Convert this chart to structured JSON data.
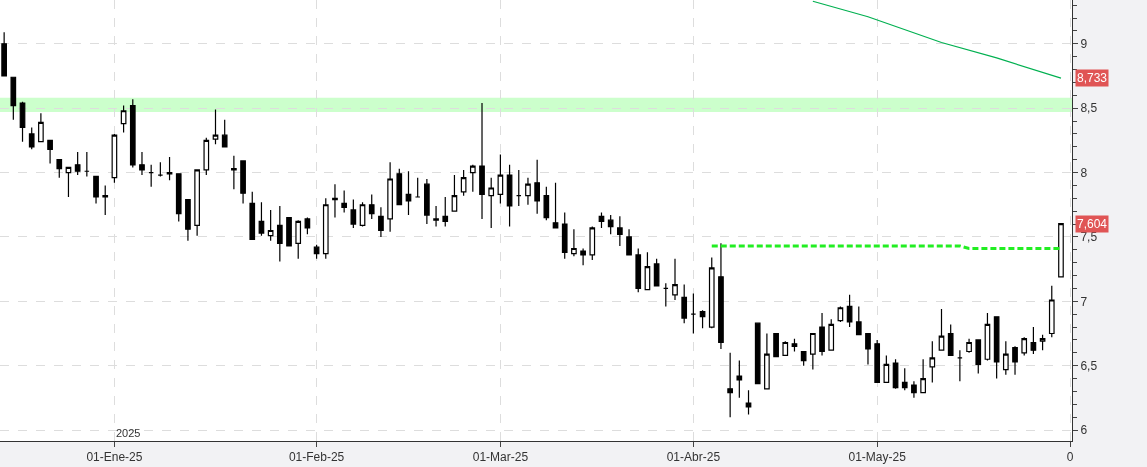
{
  "chart_data": {
    "type": "candlestick",
    "color": "#000000",
    "categories": [
      null,
      null,
      null,
      null,
      null,
      null,
      null,
      null,
      null,
      null,
      null,
      null,
      "01-Ene-25",
      null,
      null,
      null,
      null,
      null,
      null,
      null,
      null,
      null,
      null,
      null,
      null,
      null,
      null,
      null,
      null,
      null,
      null,
      null,
      null,
      null,
      "01-Feb-25",
      null,
      null,
      null,
      null,
      null,
      null,
      null,
      null,
      null,
      null,
      null,
      null,
      null,
      null,
      null,
      null,
      null,
      null,
      null,
      "01-Mar-25",
      null,
      null,
      null,
      null,
      null,
      null,
      null,
      null,
      null,
      null,
      null,
      null,
      null,
      null,
      null,
      null,
      null,
      null,
      null,
      null,
      "01-Abr-25",
      null,
      null,
      null,
      null,
      null,
      null,
      null,
      null,
      null,
      null,
      null,
      null,
      null,
      null,
      null,
      null,
      null,
      null,
      null,
      "01-May-25",
      null,
      null,
      null,
      null,
      null,
      null,
      null,
      null,
      null,
      null,
      null,
      null,
      null,
      null,
      null,
      null,
      null,
      null,
      null,
      null,
      "0"
    ],
    "ohlc": [
      [
        9.0,
        9.09,
        8.75,
        8.75
      ],
      [
        8.74,
        8.74,
        8.41,
        8.52
      ],
      [
        8.54,
        8.55,
        8.24,
        8.35
      ],
      [
        8.3,
        8.35,
        8.18,
        8.2
      ],
      [
        8.24,
        8.46,
        8.24,
        8.39
      ],
      [
        8.25,
        8.25,
        8.07,
        8.18
      ],
      [
        8.1,
        8.1,
        7.96,
        8.03
      ],
      [
        8.0,
        8.04,
        7.81,
        8.04
      ],
      [
        8.06,
        8.16,
        7.98,
        8.01
      ],
      [
        8.01,
        8.16,
        7.97,
        8.01
      ],
      [
        7.97,
        7.97,
        7.76,
        7.81
      ],
      [
        7.81,
        7.9,
        7.67,
        7.82
      ],
      [
        7.96,
        8.3,
        7.92,
        8.29
      ],
      [
        8.38,
        8.52,
        8.31,
        8.48
      ],
      [
        8.52,
        8.57,
        8.04,
        8.06
      ],
      [
        8.06,
        8.16,
        7.98,
        8.02
      ],
      [
        8.0,
        8.06,
        7.89,
        8.0
      ],
      [
        7.98,
        8.08,
        7.97,
        7.98
      ],
      [
        7.99,
        8.12,
        7.94,
        8.0
      ],
      [
        7.99,
        7.99,
        7.62,
        7.68
      ],
      [
        7.79,
        7.79,
        7.47,
        7.56
      ],
      [
        7.59,
        8.02,
        7.51,
        8.02
      ],
      [
        8.02,
        8.27,
        7.98,
        8.25
      ],
      [
        8.26,
        8.49,
        8.22,
        8.29
      ],
      [
        8.29,
        8.41,
        8.2,
        8.2
      ],
      [
        8.03,
        8.13,
        7.87,
        8.02
      ],
      [
        8.09,
        8.09,
        7.76,
        7.84
      ],
      [
        7.76,
        7.85,
        7.48,
        7.48
      ],
      [
        7.62,
        7.77,
        7.51,
        7.53
      ],
      [
        7.51,
        7.71,
        7.47,
        7.55
      ],
      [
        7.59,
        7.74,
        7.31,
        7.45
      ],
      [
        7.65,
        7.65,
        7.43,
        7.43
      ],
      [
        7.45,
        7.63,
        7.33,
        7.62
      ],
      [
        7.64,
        7.65,
        7.52,
        7.57
      ],
      [
        7.42,
        7.44,
        7.33,
        7.37
      ],
      [
        7.37,
        7.8,
        7.33,
        7.75
      ],
      [
        7.8,
        7.91,
        7.65,
        7.79
      ],
      [
        7.76,
        7.86,
        7.69,
        7.73
      ],
      [
        7.71,
        7.79,
        7.57,
        7.6
      ],
      [
        7.59,
        7.77,
        7.58,
        7.75
      ],
      [
        7.75,
        7.83,
        7.64,
        7.68
      ],
      [
        7.66,
        7.73,
        7.5,
        7.55
      ],
      [
        7.64,
        8.08,
        7.54,
        7.95
      ],
      [
        7.99,
        8.03,
        7.75,
        7.75
      ],
      [
        7.83,
        8.01,
        7.67,
        7.78
      ],
      [
        7.81,
        7.96,
        7.81,
        7.81
      ],
      [
        7.91,
        7.95,
        7.6,
        7.67
      ],
      [
        7.63,
        7.74,
        7.58,
        7.64
      ],
      [
        7.66,
        7.81,
        7.58,
        7.62
      ],
      [
        7.7,
        7.98,
        7.7,
        7.82
      ],
      [
        7.85,
        8.02,
        7.82,
        7.96
      ],
      [
        8.0,
        8.06,
        7.85,
        8.05
      ],
      [
        8.05,
        8.54,
        7.64,
        7.83
      ],
      [
        7.82,
        7.96,
        7.57,
        7.88
      ],
      [
        7.83,
        8.14,
        7.76,
        7.98
      ],
      [
        7.98,
        8.06,
        7.58,
        7.74
      ],
      [
        7.82,
        8.02,
        7.74,
        7.82
      ],
      [
        7.82,
        7.96,
        7.75,
        7.91
      ],
      [
        7.92,
        8.1,
        7.68,
        7.78
      ],
      [
        7.82,
        7.89,
        7.63,
        7.65
      ],
      [
        7.61,
        7.92,
        7.57,
        7.57
      ],
      [
        7.6,
        7.69,
        7.33,
        7.38
      ],
      [
        7.37,
        7.56,
        7.35,
        7.41
      ],
      [
        7.39,
        7.41,
        7.28,
        7.36
      ],
      [
        7.36,
        7.58,
        7.32,
        7.57
      ],
      [
        7.66,
        7.69,
        7.57,
        7.62
      ],
      [
        7.63,
        7.67,
        7.52,
        7.58
      ],
      [
        7.57,
        7.66,
        7.43,
        7.52
      ],
      [
        7.5,
        7.56,
        7.36,
        7.36
      ],
      [
        7.36,
        7.41,
        7.07,
        7.1
      ],
      [
        7.09,
        7.38,
        7.09,
        7.27
      ],
      [
        7.29,
        7.33,
        7.12,
        7.12
      ],
      [
        7.1,
        7.14,
        6.96,
        7.1
      ],
      [
        7.05,
        7.33,
        7.01,
        7.13
      ],
      [
        7.03,
        7.13,
        6.83,
        6.87
      ],
      [
        6.9,
        7.06,
        6.75,
        6.9
      ],
      [
        6.92,
        6.93,
        6.79,
        6.88
      ],
      [
        6.8,
        7.34,
        6.79,
        7.26
      ],
      [
        7.19,
        7.45,
        6.63,
        6.68
      ],
      [
        6.32,
        6.6,
        6.1,
        6.29
      ],
      [
        6.42,
        6.54,
        6.25,
        6.39
      ],
      [
        6.21,
        6.31,
        6.12,
        6.18
      ],
      [
        6.83,
        6.83,
        6.36,
        6.36
      ],
      [
        6.32,
        6.75,
        6.32,
        6.59
      ],
      [
        6.75,
        6.75,
        6.57,
        6.57
      ],
      [
        6.58,
        6.69,
        6.58,
        6.68
      ],
      [
        6.67,
        6.71,
        6.61,
        6.65
      ],
      [
        6.61,
        6.61,
        6.5,
        6.54
      ],
      [
        6.59,
        6.75,
        6.47,
        6.75
      ],
      [
        6.8,
        6.91,
        6.58,
        6.61
      ],
      [
        6.62,
        6.86,
        6.62,
        6.82
      ],
      [
        6.85,
        6.96,
        6.84,
        6.95
      ],
      [
        6.96,
        7.05,
        6.8,
        6.84
      ],
      [
        6.84,
        6.96,
        6.74,
        6.74
      ],
      [
        6.75,
        6.75,
        6.51,
        6.63
      ],
      [
        6.67,
        6.7,
        6.37,
        6.37
      ],
      [
        6.37,
        6.58,
        6.37,
        6.51
      ],
      [
        6.52,
        6.55,
        6.32,
        6.33
      ],
      [
        6.37,
        6.48,
        6.31,
        6.33
      ],
      [
        6.35,
        6.38,
        6.25,
        6.29
      ],
      [
        6.29,
        6.55,
        6.29,
        6.4
      ],
      [
        6.49,
        6.69,
        6.37,
        6.56
      ],
      [
        6.62,
        6.94,
        6.62,
        6.73
      ],
      [
        6.75,
        6.82,
        6.58,
        6.58
      ],
      [
        6.56,
        6.62,
        6.38,
        6.56
      ],
      [
        6.61,
        6.71,
        6.6,
        6.68
      ],
      [
        6.7,
        6.7,
        6.44,
        6.51
      ],
      [
        6.55,
        6.91,
        6.54,
        6.82
      ],
      [
        6.88,
        6.88,
        6.4,
        6.53
      ],
      [
        6.47,
        6.69,
        6.43,
        6.59
      ],
      [
        6.64,
        6.65,
        6.43,
        6.53
      ],
      [
        6.6,
        6.72,
        6.58,
        6.71
      ],
      [
        6.68,
        6.8,
        6.59,
        6.62
      ],
      [
        6.69,
        6.74,
        6.62,
        6.71
      ],
      [
        6.75,
        7.12,
        6.72,
        7.01
      ],
      [
        7.19,
        7.604,
        7.19,
        7.604
      ],
      null
    ],
    "series": [
      {
        "type": "line",
        "color": "#00b050",
        "values": [
          null,
          null,
          null,
          null,
          null,
          null,
          null,
          null,
          null,
          null,
          null,
          null,
          null,
          null,
          null,
          null,
          null,
          null,
          null,
          null,
          null,
          null,
          null,
          null,
          null,
          null,
          null,
          null,
          null,
          null,
          null,
          null,
          null,
          null,
          null,
          null,
          null,
          null,
          null,
          null,
          null,
          null,
          null,
          null,
          null,
          null,
          null,
          null,
          null,
          null,
          null,
          null,
          null,
          null,
          null,
          null,
          null,
          null,
          null,
          null,
          null,
          null,
          null,
          null,
          null,
          null,
          null,
          null,
          null,
          null,
          null,
          null,
          null,
          null,
          null,
          null,
          null,
          null,
          null,
          null,
          null,
          null,
          null,
          null,
          null,
          null,
          null,
          null,
          9.33,
          null,
          null,
          null,
          null,
          null,
          9.21,
          null,
          null,
          null,
          null,
          null,
          null,
          null,
          9.01,
          null,
          null,
          null,
          null,
          null,
          8.89,
          null,
          null,
          null,
          null,
          null,
          null,
          8.733,
          null
        ]
      },
      {
        "type": "line",
        "color": "#22ee22",
        "line_style": "dashed",
        "values": [
          null,
          null,
          null,
          null,
          null,
          null,
          null,
          null,
          null,
          null,
          null,
          null,
          null,
          null,
          null,
          null,
          null,
          null,
          null,
          null,
          null,
          null,
          null,
          null,
          null,
          null,
          null,
          null,
          null,
          null,
          null,
          null,
          null,
          null,
          null,
          null,
          null,
          null,
          null,
          null,
          null,
          null,
          null,
          null,
          null,
          null,
          null,
          null,
          null,
          null,
          null,
          null,
          null,
          null,
          null,
          null,
          null,
          null,
          null,
          null,
          null,
          null,
          null,
          null,
          null,
          null,
          null,
          null,
          null,
          null,
          null,
          null,
          null,
          null,
          null,
          null,
          null,
          7.43,
          null,
          null,
          null,
          null,
          null,
          null,
          null,
          null,
          null,
          null,
          null,
          null,
          null,
          null,
          null,
          null,
          null,
          null,
          null,
          null,
          null,
          null,
          null,
          null,
          null,
          null,
          7.43,
          7.41,
          null,
          null,
          null,
          null,
          null,
          null,
          null,
          null,
          null,
          7.41,
          null
        ]
      }
    ],
    "bands": [
      {
        "axis": "y",
        "from": 8.47,
        "to": 8.58,
        "color": "#ccffcc"
      }
    ],
    "annotations": [
      "2025",
      "8,733",
      "7,604"
    ],
    "ylim": [
      5.915,
      9.34
    ],
    "yticks": [
      6,
      {
        "value": 6.5,
        "label": "6,5"
      },
      7,
      {
        "value": 7.5,
        "label": "7,5"
      },
      8,
      {
        "value": 8.5,
        "label": "8,5"
      },
      9
    ],
    "grid": true,
    "legend": false
  }
}
